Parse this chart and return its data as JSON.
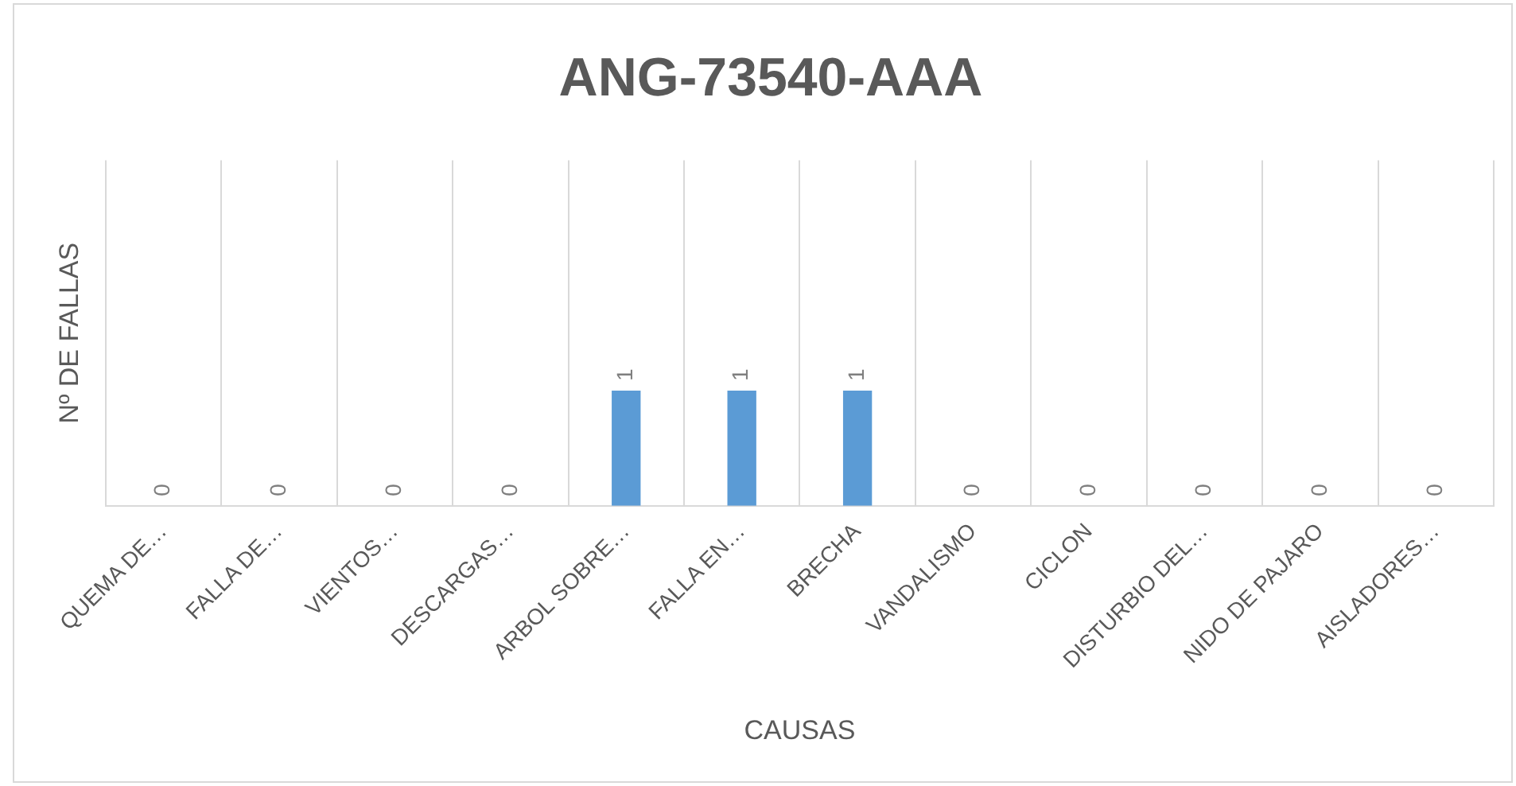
{
  "chart_data": {
    "type": "bar",
    "title": "ANG-73540-AAA",
    "xlabel": "CAUSAS",
    "ylabel": "Nº DE FALLAS",
    "categories": [
      "QUEMA DE…",
      "FALLA DE…",
      "VIENTOS…",
      "DESCARGAS…",
      "ARBOL SOBRE…",
      "FALLA EN…",
      "BRECHA",
      "VANDALISMO",
      "CICLON",
      "DISTURBIO DEL…",
      "NIDO DE PAJARO",
      "AISLADORES…"
    ],
    "values": [
      0,
      0,
      0,
      0,
      1,
      1,
      1,
      0,
      0,
      0,
      0,
      0
    ],
    "color": "#5b9bd5",
    "ylim": [
      0,
      3
    ],
    "data_labels": true,
    "grid": "x",
    "legend": false,
    "tick_labels": "x"
  }
}
